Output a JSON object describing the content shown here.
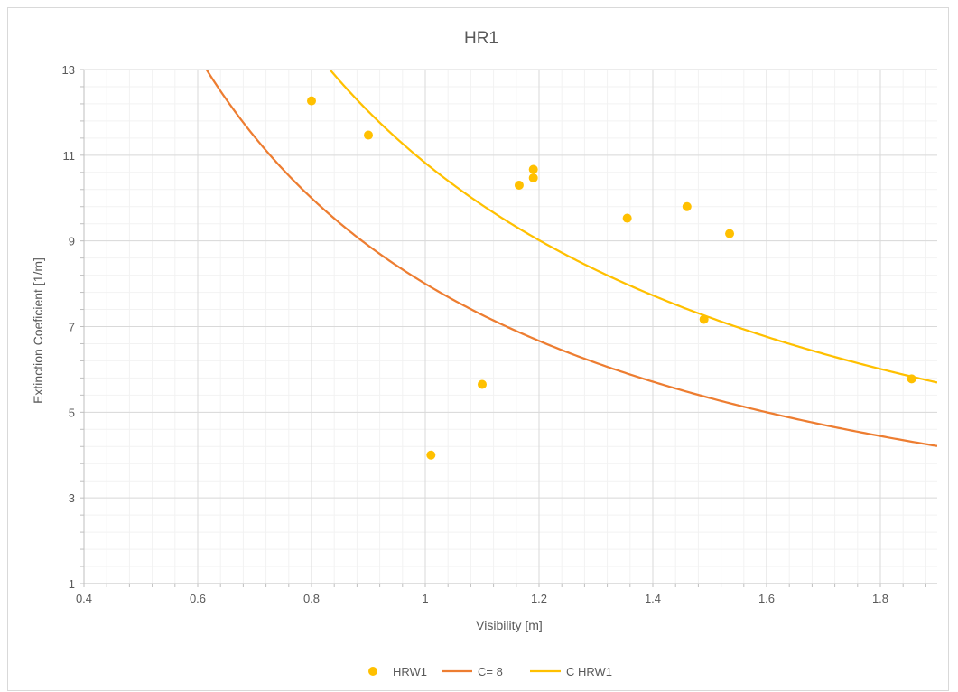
{
  "chart_data": {
    "type": "scatter",
    "title": "HR1",
    "xlabel": "Visibility [m]",
    "ylabel": "Extinction Coeficient [1/m]",
    "xlim": [
      0.4,
      1.9
    ],
    "ylim": [
      1,
      13
    ],
    "xticks": [
      0.4,
      0.6,
      0.8,
      1,
      1.2,
      1.4,
      1.6,
      1.8
    ],
    "yticks": [
      1,
      3,
      5,
      7,
      9,
      11,
      13
    ],
    "grid": true,
    "legend_position": "bottom",
    "series": [
      {
        "name": "HRW1",
        "kind": "scatter",
        "color": "#ffc000",
        "points": [
          {
            "x": 0.8,
            "y": 12.27
          },
          {
            "x": 0.9,
            "y": 11.47
          },
          {
            "x": 1.01,
            "y": 4.0
          },
          {
            "x": 1.1,
            "y": 5.65
          },
          {
            "x": 1.165,
            "y": 10.3
          },
          {
            "x": 1.19,
            "y": 10.67
          },
          {
            "x": 1.19,
            "y": 10.47
          },
          {
            "x": 1.355,
            "y": 9.53
          },
          {
            "x": 1.46,
            "y": 9.8
          },
          {
            "x": 1.49,
            "y": 7.17
          },
          {
            "x": 1.535,
            "y": 9.17
          },
          {
            "x": 1.855,
            "y": 5.78
          }
        ]
      },
      {
        "name": "C= 8",
        "kind": "line",
        "color": "#ed7d31",
        "formula": "y = 8 / x",
        "constant": 8
      },
      {
        "name": "C HRW1",
        "kind": "line",
        "color": "#ffc000",
        "formula": "y = 10.82 / x",
        "constant": 10.82
      }
    ]
  }
}
